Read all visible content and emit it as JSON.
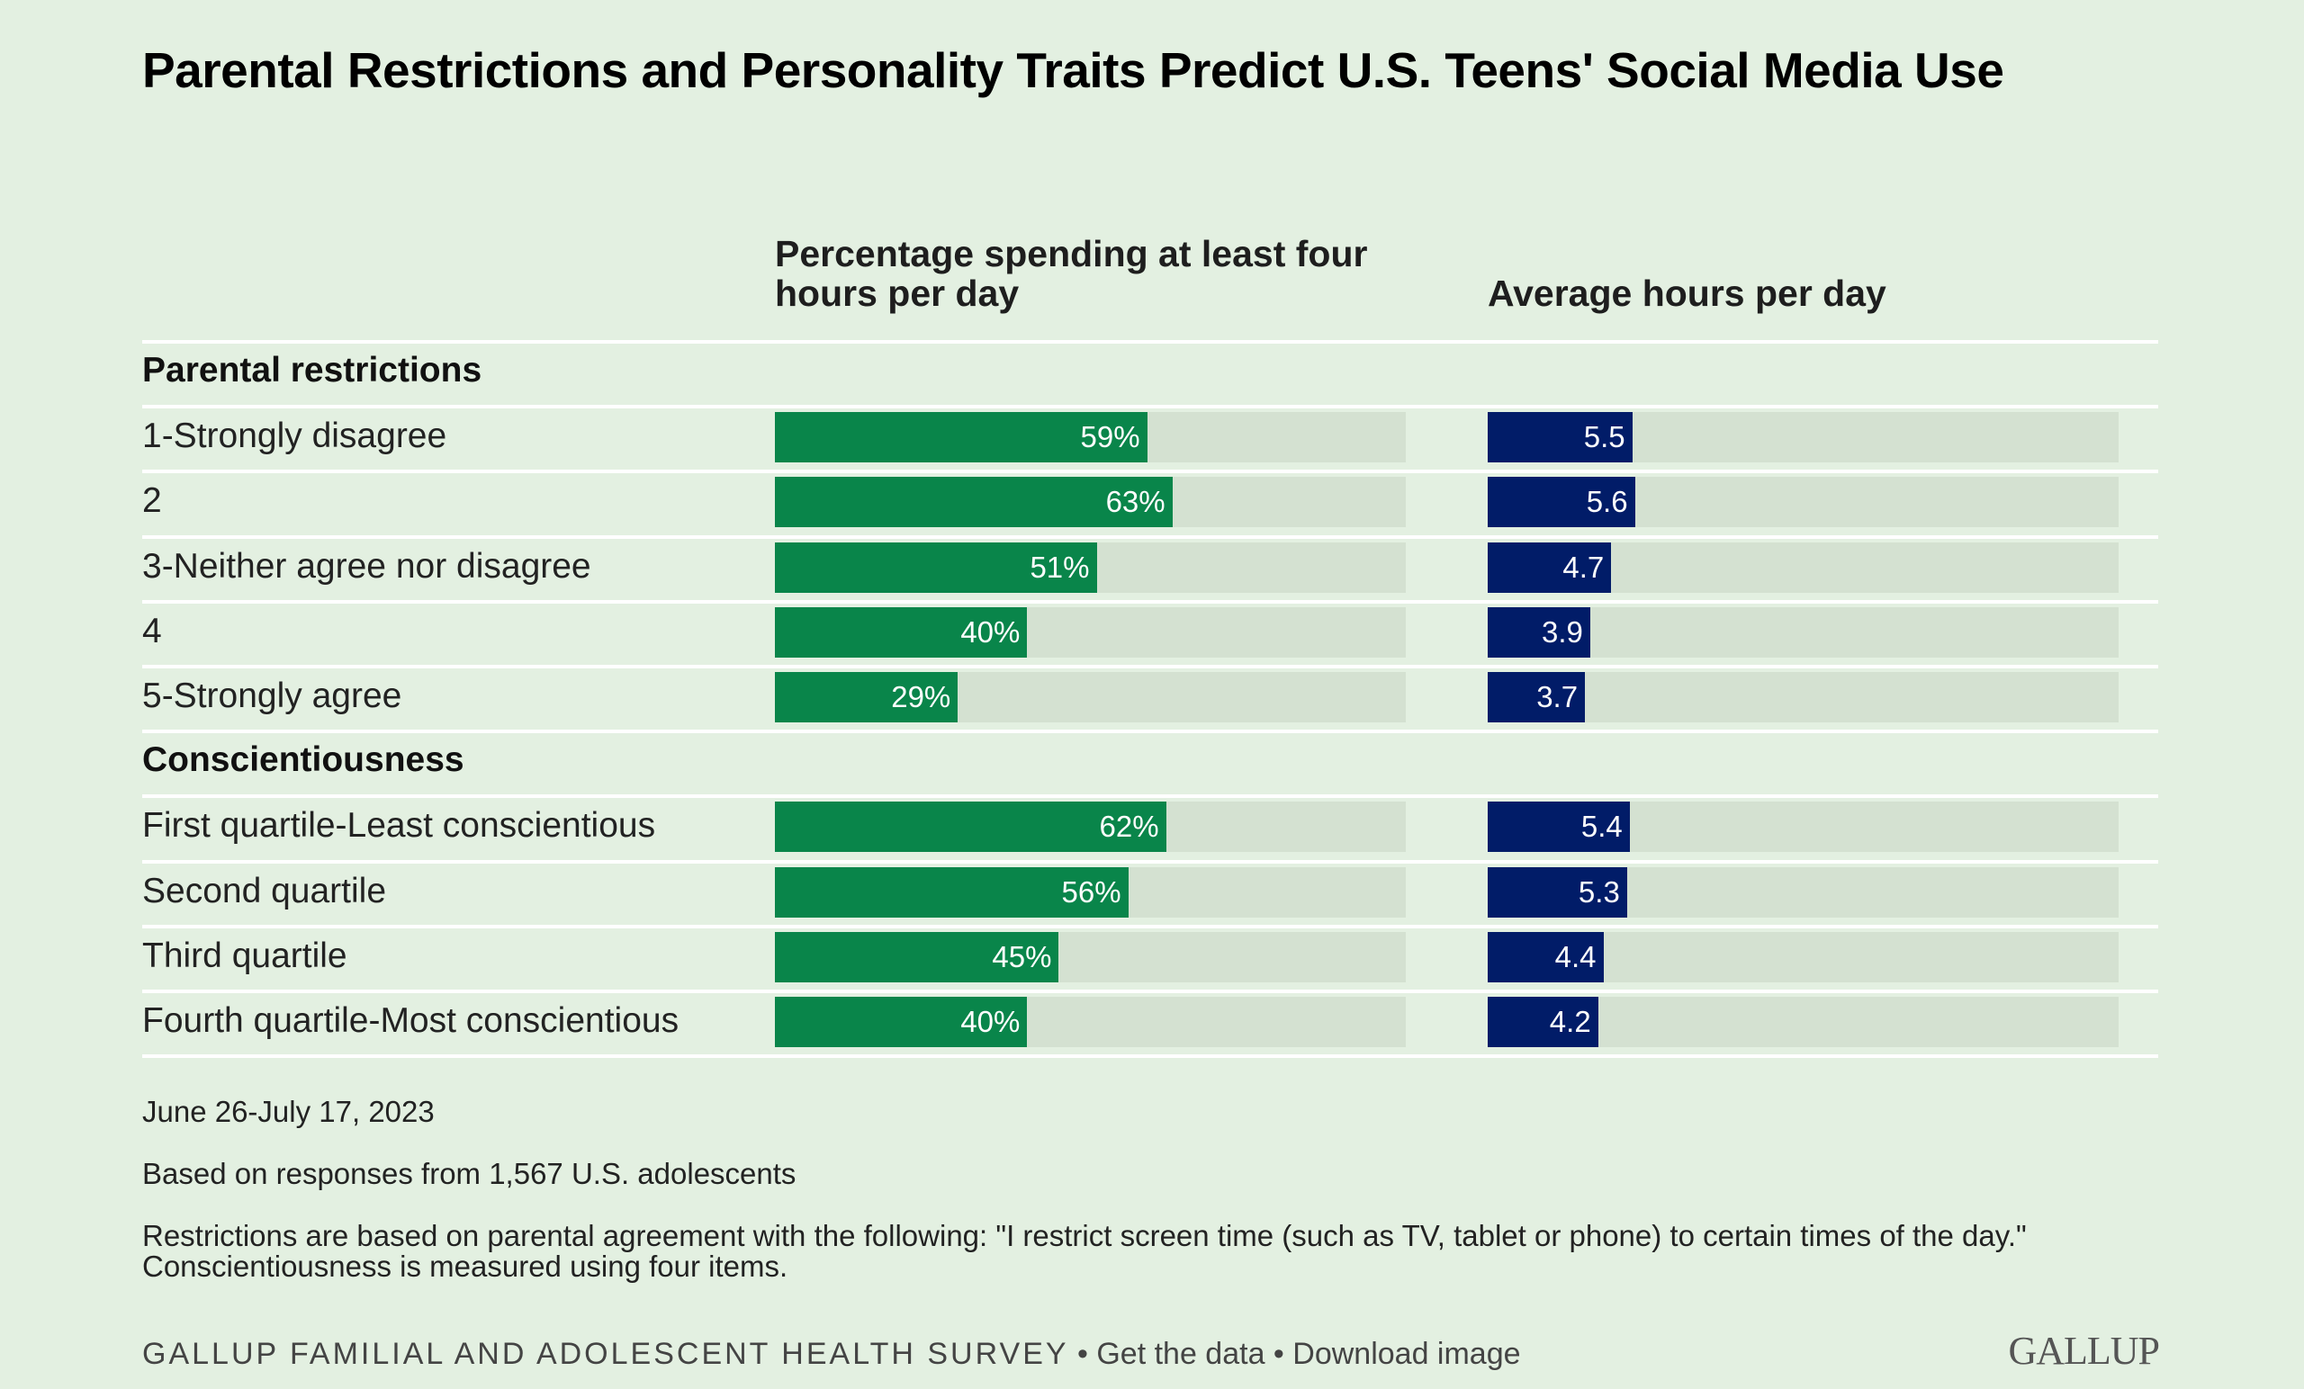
{
  "title": "Parental Restrictions and Personality Traits Predict U.S. Teens' Social Media Use",
  "columns": {
    "pct_header": "Percentage spending at least four hours per day",
    "hours_header": "Average hours per day"
  },
  "colors": {
    "green": "#09854a",
    "navy": "#011c68",
    "track": "#d4e1d1",
    "background": "#e3f0e1"
  },
  "groups": [
    {
      "label": "Parental restrictions",
      "rows": [
        {
          "label": "1-Strongly disagree",
          "pct": 59,
          "pct_label": "59%",
          "hours": 5.5,
          "hours_label": "5.5"
        },
        {
          "label": "2",
          "pct": 63,
          "pct_label": "63%",
          "hours": 5.6,
          "hours_label": "5.6"
        },
        {
          "label": "3-Neither agree nor disagree",
          "pct": 51,
          "pct_label": "51%",
          "hours": 4.7,
          "hours_label": "4.7"
        },
        {
          "label": "4",
          "pct": 40,
          "pct_label": "40%",
          "hours": 3.9,
          "hours_label": "3.9"
        },
        {
          "label": "5-Strongly agree",
          "pct": 29,
          "pct_label": "29%",
          "hours": 3.7,
          "hours_label": "3.7"
        }
      ]
    },
    {
      "label": "Conscientiousness",
      "rows": [
        {
          "label": "First quartile-Least conscientious",
          "pct": 62,
          "pct_label": "62%",
          "hours": 5.4,
          "hours_label": "5.4"
        },
        {
          "label": "Second quartile",
          "pct": 56,
          "pct_label": "56%",
          "hours": 5.3,
          "hours_label": "5.3"
        },
        {
          "label": "Third quartile",
          "pct": 45,
          "pct_label": "45%",
          "hours": 4.4,
          "hours_label": "4.4"
        },
        {
          "label": "Fourth quartile-Most conscientious",
          "pct": 40,
          "pct_label": "40%",
          "hours": 4.2,
          "hours_label": "4.2"
        }
      ]
    }
  ],
  "notes": {
    "date": "June 26-July 17, 2023",
    "sample": "Based on responses from 1,567 U.S. adolescents",
    "method_line1": "Restrictions are based on parental agreement with the following: \"I restrict screen time (such as TV, tablet or phone) to certain times of the day.\"",
    "method_line2": "Conscientiousness is measured using four items."
  },
  "footer": {
    "source": "GALLUP FAMILIAL AND ADOLESCENT HEALTH SURVEY",
    "separator": " • ",
    "get_data": "Get the data",
    "download": "Download image",
    "logo": "GALLUP"
  },
  "chart_data": {
    "type": "bar",
    "title": "Parental Restrictions and Personality Traits Predict U.S. Teens' Social Media Use",
    "categories": [
      "1-Strongly disagree",
      "2",
      "3-Neither agree nor disagree",
      "4",
      "5-Strongly agree",
      "First quartile-Least conscientious",
      "Second quartile",
      "Third quartile",
      "Fourth quartile-Most conscientious"
    ],
    "category_groups": [
      {
        "name": "Parental restrictions",
        "categories": [
          "1-Strongly disagree",
          "2",
          "3-Neither agree nor disagree",
          "4",
          "5-Strongly agree"
        ]
      },
      {
        "name": "Conscientiousness",
        "categories": [
          "First quartile-Least conscientious",
          "Second quartile",
          "Third quartile",
          "Fourth quartile-Most conscientious"
        ]
      }
    ],
    "series": [
      {
        "name": "Percentage spending at least four hours per day",
        "unit": "%",
        "values": [
          59,
          63,
          51,
          40,
          29,
          62,
          56,
          45,
          40
        ],
        "xlim": [
          0,
          100
        ]
      },
      {
        "name": "Average hours per day",
        "unit": "hours",
        "values": [
          5.5,
          5.6,
          4.7,
          3.9,
          3.7,
          5.4,
          5.3,
          4.4,
          4.2
        ],
        "xlim": [
          0,
          24
        ]
      }
    ],
    "orientation": "horizontal",
    "grid": false,
    "legend": "none"
  }
}
